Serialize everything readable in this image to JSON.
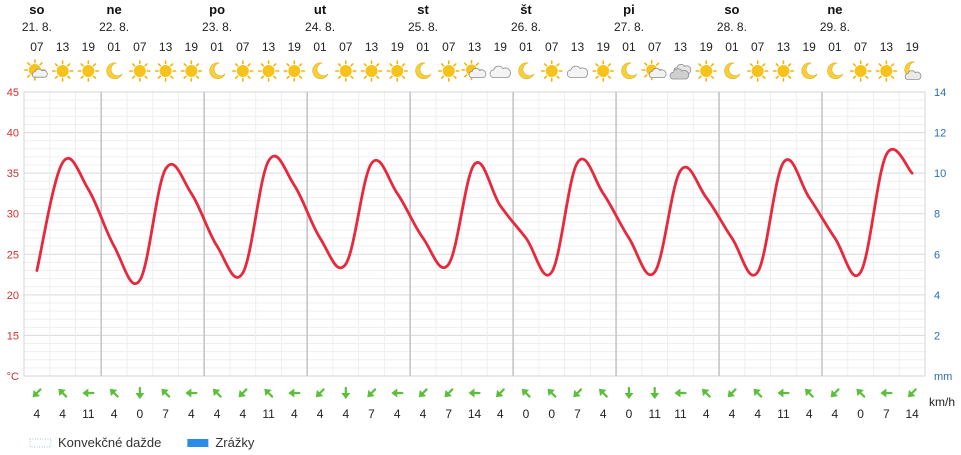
{
  "chart_data": {
    "type": "line",
    "days": [
      {
        "name": "so",
        "date": "21. 8.",
        "col": 0
      },
      {
        "name": "ne",
        "date": "22. 8.",
        "col": 3
      },
      {
        "name": "po",
        "date": "23. 8.",
        "col": 7
      },
      {
        "name": "ut",
        "date": "24. 8.",
        "col": 11
      },
      {
        "name": "st",
        "date": "25. 8.",
        "col": 15
      },
      {
        "name": "št",
        "date": "26. 8.",
        "col": 19
      },
      {
        "name": "pi",
        "date": "27. 8.",
        "col": 23
      },
      {
        "name": "so",
        "date": "28. 8.",
        "col": 27
      },
      {
        "name": "ne",
        "date": "29. 8.",
        "col": 31
      }
    ],
    "hours": [
      "07",
      "13",
      "19",
      "01",
      "07",
      "13",
      "19",
      "01",
      "07",
      "13",
      "19",
      "01",
      "07",
      "13",
      "19",
      "01",
      "07",
      "13",
      "19",
      "01",
      "07",
      "13",
      "19",
      "01",
      "07",
      "13",
      "19",
      "01",
      "07",
      "13",
      "19",
      "01",
      "07",
      "13",
      "19"
    ],
    "icons": [
      "partly-sunny-icon",
      "sun-icon",
      "sun-icon",
      "moon-icon",
      "sun-icon",
      "sun-icon",
      "sun-icon",
      "moon-icon",
      "sun-icon",
      "sun-icon",
      "sun-icon",
      "moon-icon",
      "sun-icon",
      "sun-icon",
      "sun-icon",
      "moon-icon",
      "sun-icon",
      "partly-cloudy-icon",
      "cloudy-icon",
      "moon-icon",
      "sun-icon",
      "cloudy-icon",
      "sun-icon",
      "moon-icon",
      "partly-cloudy-icon",
      "cloud-rain-icon",
      "sun-icon",
      "moon-icon",
      "sun-icon",
      "sun-icon",
      "moon-icon",
      "moon-icon",
      "sun-icon",
      "sun-icon",
      "moon-cloud-icon"
    ],
    "series": [
      {
        "name": "",
        "color": "#e8283c",
        "values": [
          23,
          36.3,
          33,
          26,
          21.8,
          35.5,
          32.5,
          26,
          22.7,
          36.5,
          33.5,
          27,
          23.8,
          36.2,
          32.5,
          27,
          23.8,
          36.1,
          31,
          27,
          22.8,
          36.3,
          32.5,
          27,
          22.8,
          35.3,
          32,
          27,
          22.8,
          36.3,
          32,
          27,
          22.8,
          37.3,
          35
        ]
      }
    ],
    "y_left": {
      "unit": "°C",
      "ticks": [
        15,
        20,
        25,
        30,
        35,
        40,
        45
      ],
      "range": [
        10,
        45
      ],
      "color": "#d03030"
    },
    "y_right": {
      "unit": "mm",
      "ticks": [
        2,
        4,
        6,
        8,
        10,
        12,
        14
      ],
      "range": [
        0,
        14
      ],
      "color": "#2a6fb0"
    },
    "wind": {
      "unit": "km/h",
      "speeds": [
        "4",
        "4",
        "11",
        "4",
        "0",
        "7",
        "4",
        "4",
        "4",
        "11",
        "4",
        "4",
        "4",
        "7",
        "4",
        "4",
        "7",
        "14",
        "4",
        "0",
        "0",
        "7",
        "4",
        "0",
        "11",
        "11",
        "4",
        "4",
        "4",
        "11",
        "4",
        "4",
        "0",
        "7",
        "14"
      ],
      "directions": [
        135,
        225,
        180,
        225,
        90,
        225,
        180,
        225,
        135,
        225,
        180,
        135,
        90,
        135,
        180,
        135,
        135,
        180,
        135,
        225,
        225,
        135,
        225,
        90,
        90,
        180,
        225,
        135,
        225,
        180,
        225,
        135,
        225,
        180,
        135
      ],
      "color": "#5cbf3a"
    },
    "legend": [
      {
        "label": "Konvekčné dažde",
        "color": "#aac4e6",
        "style": "dotted"
      },
      {
        "label": "Zrážky",
        "color": "#2a8ce8",
        "style": "solid"
      }
    ],
    "grid": true
  }
}
